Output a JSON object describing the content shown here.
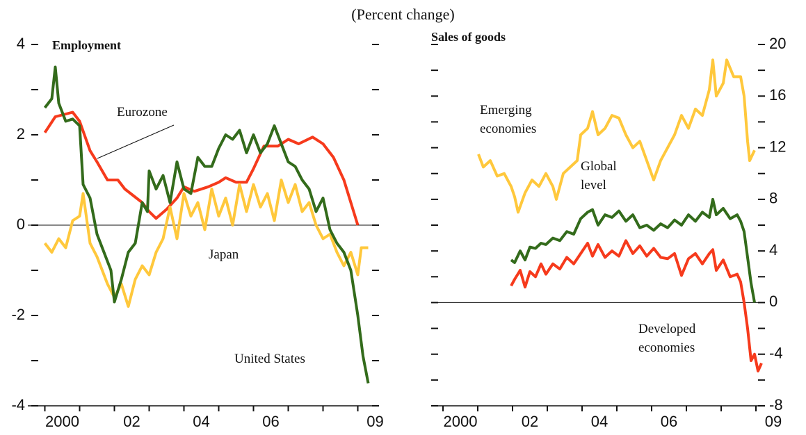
{
  "subtitle": "(Percent change)",
  "chart_data": [
    {
      "type": "line",
      "title": "Employment",
      "xlim": [
        1999.95,
        2009.6
      ],
      "ylim": [
        -4,
        4
      ],
      "xticks": [
        2000,
        {
          "value": 2001,
          "label": null
        },
        {
          "value": 2002,
          "label": "02"
        },
        {
          "value": 2003,
          "label": null
        },
        {
          "value": 2004,
          "label": "04"
        },
        {
          "value": 2005,
          "label": null
        },
        {
          "value": 2006,
          "label": "06"
        },
        {
          "value": 2007,
          "label": null
        },
        {
          "value": 2008,
          "label": null
        },
        {
          "value": 2009,
          "label": "09"
        }
      ],
      "yticks": [
        -4,
        {
          "value": -3,
          "label": null
        },
        -2,
        {
          "value": -1,
          "label": null
        },
        0,
        {
          "value": 1,
          "label": null
        },
        2,
        {
          "value": 3,
          "label": null
        },
        4
      ],
      "series": [
        {
          "name": "Eurozone",
          "color": "#f63a1c",
          "x": [
            2000,
            2000.3,
            2000.8,
            2001,
            2001.3,
            2001.5,
            2001.8,
            2002.1,
            2002.3,
            2002.8,
            2003,
            2003.2,
            2003.5,
            2003.8,
            2004,
            2004.3,
            2004.7,
            2005,
            2005.2,
            2005.5,
            2005.8,
            2006,
            2006.3,
            2006.7,
            2007,
            2007.3,
            2007.7,
            2008,
            2008.3,
            2008.6,
            2008.8,
            2009
          ],
          "values": [
            2.05,
            2.4,
            2.5,
            2.3,
            1.65,
            1.4,
            1,
            1,
            0.8,
            0.5,
            0.3,
            0.15,
            0.35,
            0.6,
            0.85,
            0.75,
            0.85,
            0.95,
            1.05,
            0.95,
            0.95,
            1.25,
            1.75,
            1.75,
            1.9,
            1.8,
            1.95,
            1.8,
            1.5,
            1,
            0.5,
            0
          ]
        },
        {
          "name": "Japan",
          "color": "#ffc83c",
          "x": [
            2000,
            2000.2,
            2000.4,
            2000.6,
            2000.8,
            2001,
            2001.1,
            2001.3,
            2001.5,
            2001.8,
            2002,
            2002.2,
            2002.4,
            2002.6,
            2002.8,
            2003,
            2003.2,
            2003.4,
            2003.6,
            2003.8,
            2004,
            2004.2,
            2004.4,
            2004.6,
            2004.8,
            2005,
            2005.2,
            2005.4,
            2005.6,
            2005.8,
            2006,
            2006.2,
            2006.4,
            2006.6,
            2006.8,
            2007,
            2007.2,
            2007.4,
            2007.6,
            2007.8,
            2008,
            2008.2,
            2008.4,
            2008.6,
            2008.8,
            2009,
            2009.1,
            2009.3
          ],
          "values": [
            -0.4,
            -0.6,
            -0.3,
            -0.5,
            0.1,
            0.2,
            0.7,
            -0.4,
            -0.7,
            -1.3,
            -1.6,
            -1.3,
            -1.8,
            -1.2,
            -0.9,
            -1.1,
            -0.6,
            -0.3,
            0.4,
            -0.3,
            0.7,
            0.2,
            0.5,
            -0.1,
            0.8,
            0.2,
            0.6,
            0,
            0.9,
            0.3,
            0.9,
            0.4,
            0.7,
            0.1,
            1,
            0.5,
            0.9,
            0.3,
            0.5,
            0,
            -0.3,
            -0.2,
            -0.6,
            -0.9,
            -0.6,
            -1.1,
            -0.5,
            -0.5
          ]
        },
        {
          "name": "United States",
          "color": "#336b1b",
          "x": [
            2000,
            2000.2,
            2000.3,
            2000.4,
            2000.6,
            2000.8,
            2001,
            2001.1,
            2001.3,
            2001.5,
            2001.7,
            2001.9,
            2002,
            2002.2,
            2002.4,
            2002.6,
            2002.8,
            2002.95,
            2003,
            2003.2,
            2003.4,
            2003.6,
            2003.8,
            2004,
            2004.2,
            2004.4,
            2004.6,
            2004.8,
            2005,
            2005.2,
            2005.4,
            2005.6,
            2005.8,
            2006,
            2006.2,
            2006.4,
            2006.6,
            2006.8,
            2007,
            2007.2,
            2007.4,
            2007.6,
            2007.8,
            2008,
            2008.2,
            2008.4,
            2008.6,
            2008.8,
            2009,
            2009.15,
            2009.3
          ],
          "values": [
            2.6,
            2.8,
            3.5,
            2.7,
            2.3,
            2.35,
            2.2,
            0.9,
            0.6,
            -0.2,
            -0.6,
            -1,
            -1.7,
            -1.2,
            -0.6,
            -0.4,
            0.5,
            0.3,
            1.2,
            0.8,
            1.1,
            0.5,
            1.4,
            0.8,
            0.7,
            1.5,
            1.3,
            1.3,
            1.7,
            2,
            1.9,
            2.1,
            1.6,
            2,
            1.6,
            1.8,
            2.2,
            1.8,
            1.4,
            1.3,
            1,
            0.8,
            0.3,
            0.6,
            -0.1,
            -0.4,
            -0.6,
            -1,
            -2,
            -2.9,
            -3.5
          ]
        }
      ]
    },
    {
      "type": "line",
      "title": "Sales of goods",
      "xlim": [
        1999.7,
        2009.3
      ],
      "ylim": [
        -8,
        20
      ],
      "xticks": [
        2000,
        {
          "value": 2001,
          "label": null
        },
        {
          "value": 2002,
          "label": "02"
        },
        {
          "value": 2003,
          "label": null
        },
        {
          "value": 2004,
          "label": "04"
        },
        {
          "value": 2005,
          "label": null
        },
        {
          "value": 2006,
          "label": "06"
        },
        {
          "value": 2007,
          "label": null
        },
        {
          "value": 2008,
          "label": null
        },
        {
          "value": 2009,
          "label": "09"
        }
      ],
      "yticks": [
        -8,
        {
          "value": -6,
          "label": null
        },
        -4,
        {
          "value": -2,
          "label": null
        },
        0,
        {
          "value": 2,
          "label": null
        },
        4,
        {
          "value": 6,
          "label": null
        },
        8,
        {
          "value": 10,
          "label": null
        },
        12,
        {
          "value": 14,
          "label": null
        },
        16,
        {
          "value": 18,
          "label": null
        },
        20
      ],
      "series": [
        {
          "name": "Emerging economies",
          "color": "#ffc83c",
          "x": [
            2001.02,
            2001.16,
            2001.36,
            2001.56,
            2001.76,
            2001.96,
            2002.06,
            2002.16,
            2002.36,
            2002.56,
            2002.76,
            2002.96,
            2003.16,
            2003.26,
            2003.46,
            2003.66,
            2003.86,
            2003.96,
            2004.16,
            2004.3,
            2004.46,
            2004.66,
            2004.86,
            2005.06,
            2005.26,
            2005.46,
            2005.66,
            2005.86,
            2006.06,
            2006.26,
            2006.46,
            2006.66,
            2006.86,
            2007.06,
            2007.26,
            2007.46,
            2007.66,
            2007.76,
            2007.86,
            2008.06,
            2008.16,
            2008.36,
            2008.56,
            2008.66,
            2008.76,
            2008.82,
            2008.96
          ],
          "values": [
            11.5,
            10.5,
            11,
            9.8,
            10,
            9,
            8.2,
            7,
            8.5,
            9.5,
            9,
            10,
            9,
            8,
            10,
            10.5,
            11,
            13,
            13.5,
            14.8,
            13,
            13.5,
            14.5,
            14.3,
            13,
            12,
            12.5,
            11,
            9.5,
            11,
            12,
            13,
            14.5,
            13.5,
            15,
            14.5,
            16.5,
            18.8,
            16,
            17,
            18.8,
            17.5,
            17.5,
            16,
            12.5,
            11,
            11.8
          ]
        },
        {
          "name": "Global level",
          "color": "#336b1b",
          "x": [
            2001.96,
            2002.06,
            2002.22,
            2002.36,
            2002.5,
            2002.66,
            2002.82,
            2002.96,
            2003.16,
            2003.36,
            2003.56,
            2003.76,
            2003.96,
            2004.16,
            2004.3,
            2004.46,
            2004.66,
            2004.86,
            2005.06,
            2005.26,
            2005.46,
            2005.66,
            2005.86,
            2006.06,
            2006.26,
            2006.46,
            2006.66,
            2006.86,
            2007.06,
            2007.26,
            2007.46,
            2007.66,
            2007.76,
            2007.86,
            2008.06,
            2008.26,
            2008.46,
            2008.56,
            2008.66,
            2008.76,
            2008.86,
            2008.96
          ],
          "values": [
            3.3,
            3.1,
            4,
            3.3,
            4.3,
            4.2,
            4.6,
            4.5,
            5,
            4.8,
            5.5,
            5.3,
            6.5,
            7,
            7.2,
            6,
            6.8,
            6.6,
            7.1,
            6.3,
            6.8,
            5.8,
            6,
            5.6,
            6.1,
            5.8,
            6.4,
            6,
            6.8,
            6.3,
            7,
            6.6,
            8,
            6.8,
            7.3,
            6.5,
            6.8,
            6.3,
            5.5,
            3.5,
            1.5,
            0
          ]
        },
        {
          "name": "Developed economies",
          "color": "#f63a1c",
          "x": [
            2001.96,
            2002.06,
            2002.22,
            2002.36,
            2002.5,
            2002.66,
            2002.82,
            2002.96,
            2003.16,
            2003.36,
            2003.56,
            2003.76,
            2003.96,
            2004.16,
            2004.3,
            2004.46,
            2004.66,
            2004.86,
            2005.06,
            2005.26,
            2005.46,
            2005.66,
            2005.86,
            2006.06,
            2006.26,
            2006.46,
            2006.66,
            2006.86,
            2007.06,
            2007.26,
            2007.46,
            2007.66,
            2007.76,
            2007.86,
            2008.06,
            2008.26,
            2008.46,
            2008.56,
            2008.66,
            2008.76,
            2008.86,
            2008.96,
            2009.06,
            2009.16
          ],
          "values": [
            1.3,
            1.8,
            2.5,
            1.2,
            2.4,
            2,
            3,
            2.2,
            3,
            2.6,
            3.5,
            3,
            3.8,
            4.6,
            3.6,
            4.5,
            3.5,
            4,
            3.6,
            4.8,
            3.8,
            4.4,
            3.6,
            4.2,
            3.5,
            3.4,
            3.8,
            2.1,
            3.4,
            3.8,
            3,
            3.8,
            4.1,
            2.5,
            3.3,
            2,
            2.2,
            1.6,
            0,
            -2,
            -4.5,
            -4,
            -5.3,
            -4.7
          ]
        }
      ]
    }
  ]
}
